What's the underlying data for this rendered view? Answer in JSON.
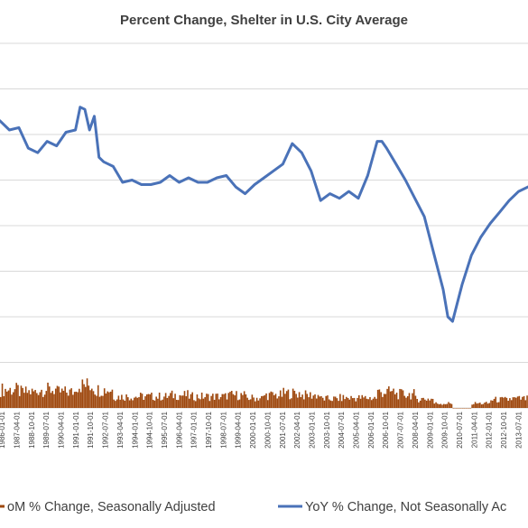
{
  "chart_data": {
    "type": "line",
    "title": "Percent Change,  Shelter in U.S. City Average",
    "xlabel": "",
    "ylabel": "",
    "x_tick_labels": [
      "1986-01-01",
      "1987-04-01",
      "1988-10-01",
      "1989-07-01",
      "1990-04-01",
      "1991-01-01",
      "1991-10-01",
      "1992-07-01",
      "1993-04-01",
      "1994-01-01",
      "1994-10-01",
      "1995-07-01",
      "1996-04-01",
      "1997-01-01",
      "1997-10-01",
      "1998-07-01",
      "1999-04-01",
      "2000-01-01",
      "2000-10-01",
      "2001-07-01",
      "2002-04-01",
      "2003-01-01",
      "2003-10-01",
      "2004-07-01",
      "2005-04-01",
      "2006-01-01",
      "2006-10-01",
      "2007-07-01",
      "2008-04-01",
      "2009-01-01",
      "2009-10-01",
      "2010-07-01",
      "2011-04-01",
      "2012-01-01",
      "2012-10-01",
      "2013-07-01"
    ],
    "grid": true,
    "legend_position": "bottom",
    "series": [
      {
        "name": "MoM % Change, Seasonally Adjusted",
        "legend_label": "oM % Change, Seasonally Adjusted",
        "color": "#9e480e",
        "kind": "bar",
        "x": [
          1986.0,
          1987.0,
          1988.0,
          1989.0,
          1990.0,
          1991.0,
          1992.0,
          1993.0,
          1994.0,
          1995.0,
          1996.0,
          1997.0,
          1998.0,
          1999.0,
          2000.0,
          2001.0,
          2002.0,
          2003.0,
          2004.0,
          2005.0,
          2006.0,
          2007.0,
          2008.0,
          2009.0,
          2010.0,
          2011.0,
          2012.0,
          2013.0,
          2014.0
        ],
        "values": [
          0.4,
          0.35,
          0.4,
          0.35,
          0.5,
          0.4,
          0.25,
          0.25,
          0.25,
          0.28,
          0.25,
          0.25,
          0.28,
          0.22,
          0.28,
          0.32,
          0.28,
          0.2,
          0.22,
          0.22,
          0.35,
          0.3,
          0.2,
          0.1,
          0.0,
          0.1,
          0.18,
          0.2,
          0.22
        ]
      },
      {
        "name": "YoY % Change, Not Seasonally Adjusted",
        "legend_label": "YoY % Change, Not Seasonally Ac",
        "color": "#4a72b8",
        "kind": "line",
        "x": [
          1986.0,
          1986.5,
          1987.0,
          1987.5,
          1988.0,
          1988.5,
          1989.0,
          1989.5,
          1990.0,
          1990.25,
          1990.5,
          1990.75,
          1991.0,
          1991.25,
          1991.5,
          1991.75,
          1992.0,
          1992.5,
          1993.0,
          1993.5,
          1994.0,
          1994.5,
          1995.0,
          1995.5,
          1996.0,
          1996.5,
          1997.0,
          1997.5,
          1998.0,
          1998.5,
          1999.0,
          1999.5,
          2000.0,
          2000.5,
          2001.0,
          2001.5,
          2002.0,
          2002.5,
          2003.0,
          2003.5,
          2004.0,
          2004.5,
          2005.0,
          2005.5,
          2006.0,
          2006.25,
          2006.5,
          2007.0,
          2007.5,
          2008.0,
          2008.5,
          2009.0,
          2009.5,
          2009.75,
          2010.0,
          2010.5,
          2011.0,
          2011.5,
          2012.0,
          2012.5,
          2013.0,
          2013.5,
          2014.0
        ],
        "values": [
          6.3,
          6.1,
          6.15,
          5.7,
          5.6,
          5.85,
          5.75,
          6.05,
          6.1,
          6.6,
          6.55,
          6.1,
          6.4,
          5.5,
          5.4,
          5.35,
          5.3,
          4.95,
          5.0,
          4.9,
          4.9,
          4.95,
          5.1,
          4.95,
          5.05,
          4.95,
          4.95,
          5.05,
          5.1,
          4.85,
          4.7,
          4.9,
          5.05,
          5.2,
          5.35,
          5.8,
          5.6,
          5.2,
          4.55,
          4.7,
          4.6,
          4.75,
          4.6,
          5.1,
          5.85,
          5.85,
          5.7,
          5.35,
          5.0,
          4.6,
          4.2,
          3.4,
          2.6,
          2.0,
          1.9,
          2.7,
          3.35,
          3.75,
          4.05,
          4.3,
          4.55,
          4.75,
          4.85
        ]
      }
    ],
    "xlim": [
      1986.0,
      2014.0
    ],
    "ylim": [
      0,
      8
    ],
    "y_gridlines": [
      0,
      1,
      2,
      3,
      4,
      5,
      6,
      7,
      8
    ]
  }
}
